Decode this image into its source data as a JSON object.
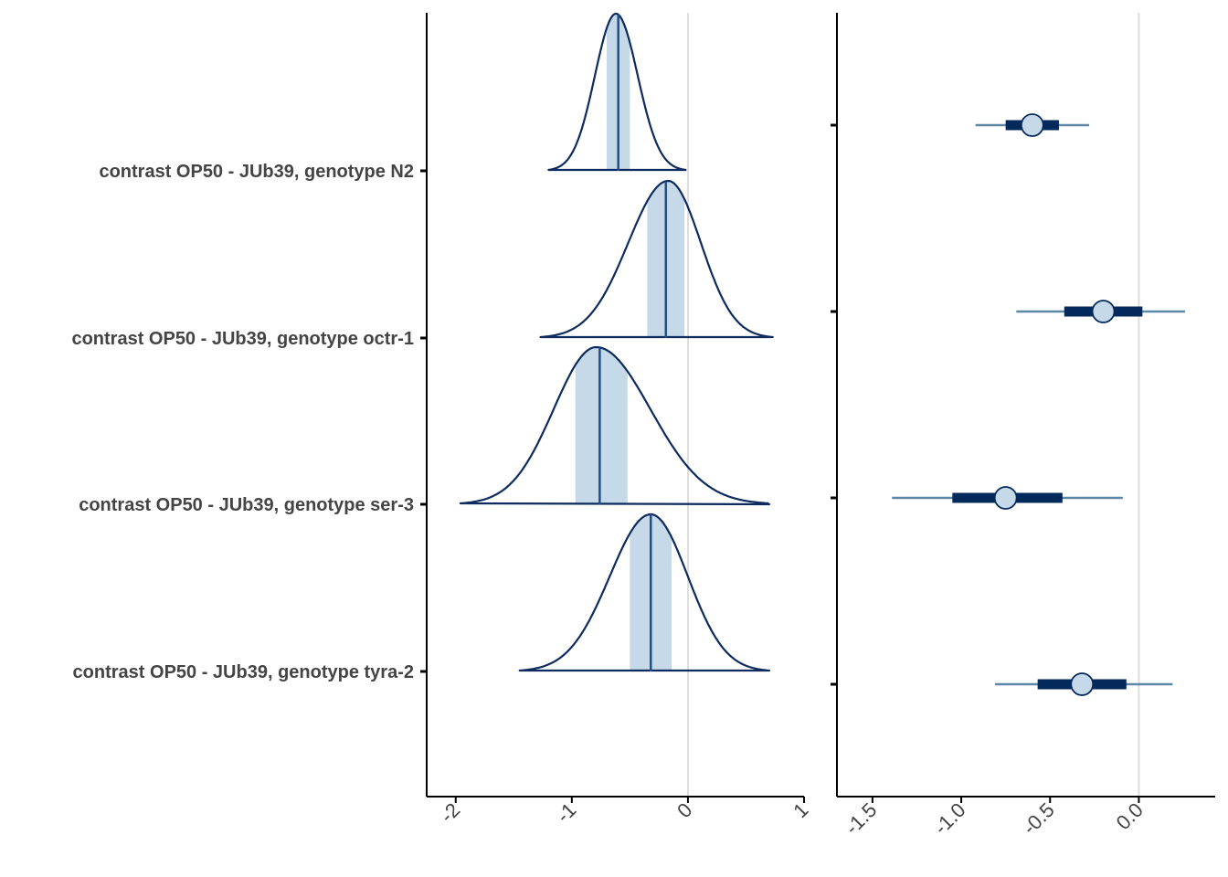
{
  "chart_data": [
    {
      "type": "density",
      "panel": "left",
      "xlim": [
        -2.25,
        1.0
      ],
      "x_ticks": [
        "-2",
        "-1",
        "0",
        "1"
      ],
      "x_tick_values": [
        -2,
        -1,
        0,
        1
      ],
      "reference_line_x": 0,
      "grid": false,
      "categories": [
        "contrast OP50 - JUb39, genotype N2",
        "contrast OP50 - JUb39, genotype octr-1",
        "contrast OP50 - JUb39, genotype ser-3",
        "contrast OP50 - JUb39, genotype tyra-2"
      ],
      "series": [
        {
          "median": -0.6,
          "interval": [
            -0.7,
            -0.5
          ],
          "range": [
            -1.2,
            -0.02
          ],
          "mode": -0.62
        },
        {
          "median": -0.19,
          "interval": [
            -0.35,
            -0.03
          ],
          "range": [
            -1.27,
            0.73
          ],
          "mode": -0.17
        },
        {
          "median": -0.76,
          "interval": [
            -0.97,
            -0.52
          ],
          "range": [
            -1.96,
            0.7
          ],
          "mode": -0.79
        },
        {
          "median": -0.32,
          "interval": [
            -0.5,
            -0.14
          ],
          "range": [
            -1.45,
            0.7
          ],
          "mode": -0.32
        }
      ],
      "colors": {
        "outline": "#0d2b5e",
        "interval_fill": "#c6d9e8",
        "median_line": "#1f4e8c",
        "zero_line": "#dddddd"
      }
    },
    {
      "type": "pointrange",
      "panel": "right",
      "xlim": [
        -1.7,
        0.43
      ],
      "x_ticks": [
        "-1.5",
        "-1.0",
        "-0.5",
        "0.0"
      ],
      "x_tick_values": [
        -1.5,
        -1.0,
        -0.5,
        0.0
      ],
      "reference_line_x": 0,
      "grid": false,
      "series": [
        {
          "point": -0.6,
          "inner": [
            -0.75,
            -0.45
          ],
          "outer": [
            -0.92,
            -0.28
          ]
        },
        {
          "point": -0.2,
          "inner": [
            -0.42,
            0.02
          ],
          "outer": [
            -0.69,
            0.26
          ]
        },
        {
          "point": -0.75,
          "inner": [
            -1.05,
            -0.43
          ],
          "outer": [
            -1.39,
            -0.09
          ]
        },
        {
          "point": -0.32,
          "inner": [
            -0.57,
            -0.07
          ],
          "outer": [
            -0.81,
            0.19
          ]
        }
      ],
      "colors": {
        "outer_line": "#5b87a8",
        "inner_bar": "#04295b",
        "point_fill": "#c6d9e8",
        "point_stroke": "#04295b",
        "zero_line": "#dddddd"
      }
    }
  ]
}
